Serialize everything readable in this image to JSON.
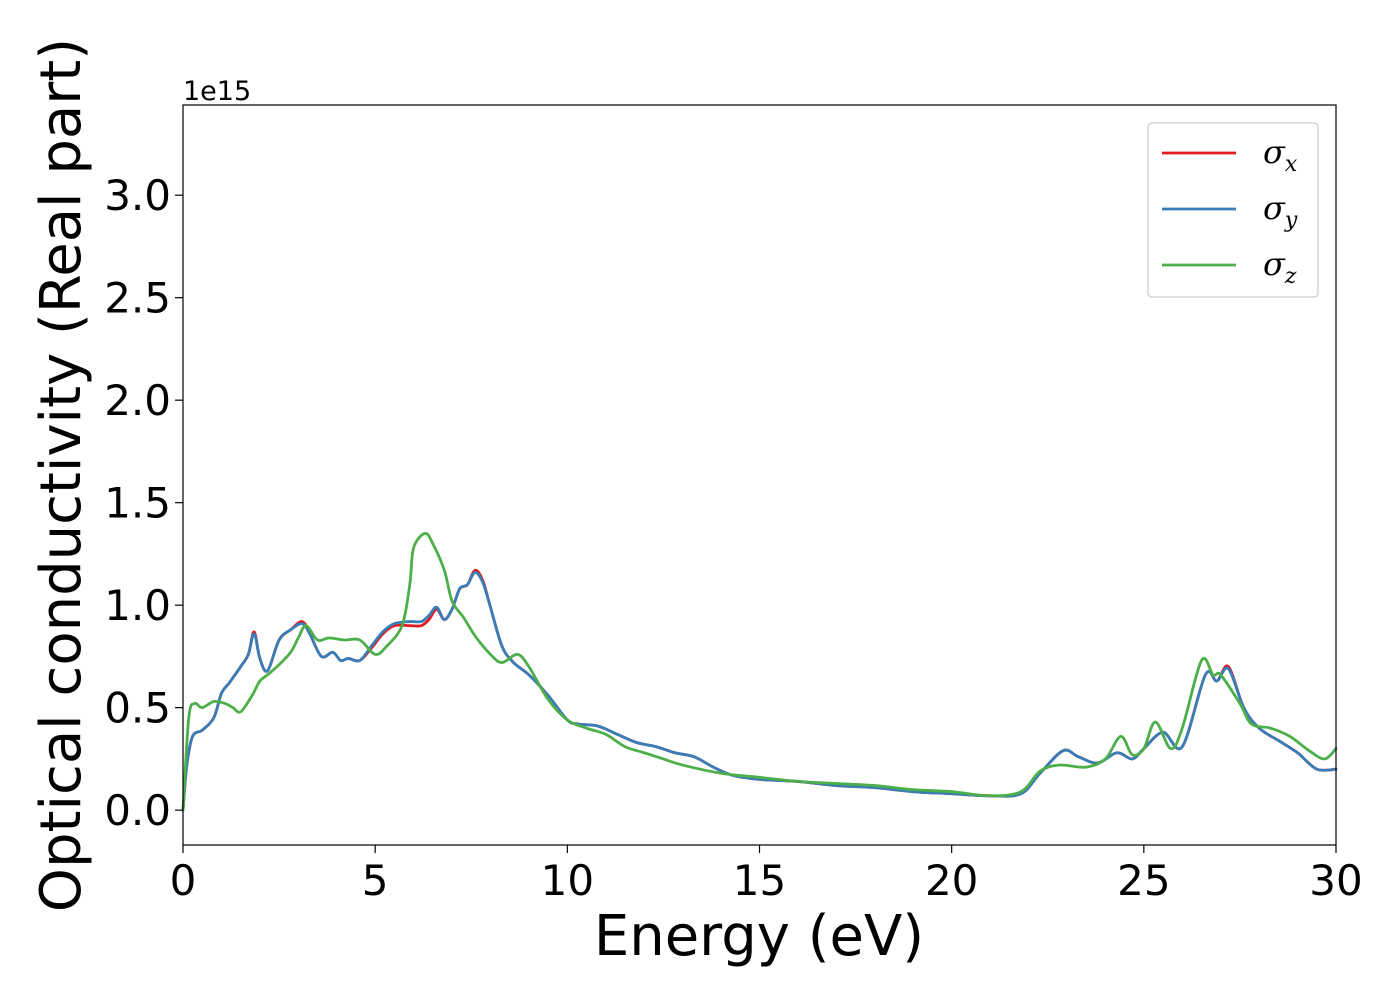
{
  "chart_data": {
    "type": "line",
    "xlabel": "Energy (eV)",
    "ylabel": "Optical conductivity (Real part)",
    "y_offset_text": "1e15",
    "xlim": [
      0,
      30
    ],
    "ylim": [
      -0.17,
      3.44
    ],
    "xticks": [
      0,
      5,
      10,
      15,
      20,
      25,
      30
    ],
    "xtick_labels": [
      "0",
      "5",
      "10",
      "15",
      "20",
      "25",
      "30"
    ],
    "yticks": [
      0.0,
      0.5,
      1.0,
      1.5,
      2.0,
      2.5,
      3.0
    ],
    "ytick_labels": [
      "0.0",
      "0.5",
      "1.0",
      "1.5",
      "2.0",
      "2.5",
      "3.0"
    ],
    "grid": false,
    "legend_position": "top-right",
    "series": [
      {
        "name": "σx",
        "label_base": "σ",
        "label_sub": "x",
        "color": "#e41a1c",
        "x": [
          0,
          0.1,
          0.25,
          0.5,
          0.8,
          1.0,
          1.2,
          1.5,
          1.7,
          1.85,
          2.0,
          2.2,
          2.5,
          2.8,
          3.1,
          3.3,
          3.6,
          3.9,
          4.1,
          4.3,
          4.6,
          4.9,
          5.2,
          5.5,
          5.9,
          6.2,
          6.4,
          6.6,
          6.8,
          7.0,
          7.2,
          7.4,
          7.6,
          7.8,
          8.0,
          8.3,
          8.6,
          9.0,
          9.5,
          10.0,
          10.3,
          10.8,
          11.3,
          11.8,
          12.3,
          12.8,
          13.3,
          13.8,
          14.3,
          15.0,
          16.0,
          17.0,
          18.0,
          19.0,
          20.0,
          21.0,
          21.8,
          22.3,
          22.9,
          23.3,
          23.8,
          24.3,
          24.7,
          25.0,
          25.5,
          26.0,
          26.6,
          26.9,
          27.2,
          27.6,
          28.0,
          28.5,
          29.0,
          29.5,
          30.0
        ],
        "values": [
          0.0,
          0.22,
          0.36,
          0.39,
          0.45,
          0.57,
          0.62,
          0.7,
          0.76,
          0.87,
          0.74,
          0.68,
          0.83,
          0.88,
          0.92,
          0.86,
          0.75,
          0.77,
          0.73,
          0.74,
          0.73,
          0.79,
          0.86,
          0.9,
          0.9,
          0.9,
          0.93,
          0.98,
          0.93,
          0.98,
          1.08,
          1.1,
          1.17,
          1.12,
          0.99,
          0.8,
          0.72,
          0.66,
          0.56,
          0.44,
          0.42,
          0.41,
          0.37,
          0.33,
          0.31,
          0.28,
          0.26,
          0.21,
          0.17,
          0.15,
          0.14,
          0.12,
          0.11,
          0.09,
          0.08,
          0.07,
          0.08,
          0.18,
          0.29,
          0.26,
          0.23,
          0.28,
          0.25,
          0.3,
          0.38,
          0.31,
          0.66,
          0.63,
          0.7,
          0.5,
          0.4,
          0.34,
          0.28,
          0.2,
          0.2
        ]
      },
      {
        "name": "σy",
        "label_base": "σ",
        "label_sub": "y",
        "color": "#377eb8",
        "x": [
          0,
          0.1,
          0.25,
          0.5,
          0.8,
          1.0,
          1.2,
          1.5,
          1.7,
          1.85,
          2.0,
          2.2,
          2.5,
          2.8,
          3.1,
          3.3,
          3.6,
          3.9,
          4.1,
          4.3,
          4.6,
          4.9,
          5.2,
          5.5,
          5.9,
          6.2,
          6.4,
          6.6,
          6.8,
          7.0,
          7.2,
          7.4,
          7.6,
          7.8,
          8.0,
          8.3,
          8.6,
          9.0,
          9.5,
          10.0,
          10.3,
          10.8,
          11.3,
          11.8,
          12.3,
          12.8,
          13.3,
          13.8,
          14.3,
          15.0,
          16.0,
          17.0,
          18.0,
          19.0,
          20.0,
          21.0,
          21.8,
          22.3,
          22.9,
          23.3,
          23.8,
          24.3,
          24.7,
          25.0,
          25.5,
          26.0,
          26.6,
          26.9,
          27.2,
          27.6,
          28.0,
          28.5,
          29.0,
          29.5,
          30.0
        ],
        "values": [
          0.0,
          0.22,
          0.36,
          0.39,
          0.45,
          0.57,
          0.62,
          0.7,
          0.76,
          0.86,
          0.74,
          0.68,
          0.83,
          0.88,
          0.91,
          0.86,
          0.75,
          0.77,
          0.73,
          0.74,
          0.73,
          0.8,
          0.87,
          0.91,
          0.92,
          0.92,
          0.95,
          0.99,
          0.93,
          0.98,
          1.08,
          1.1,
          1.16,
          1.11,
          0.99,
          0.8,
          0.72,
          0.66,
          0.56,
          0.44,
          0.42,
          0.41,
          0.37,
          0.33,
          0.31,
          0.28,
          0.26,
          0.21,
          0.17,
          0.15,
          0.14,
          0.12,
          0.11,
          0.09,
          0.08,
          0.07,
          0.08,
          0.18,
          0.29,
          0.26,
          0.23,
          0.28,
          0.25,
          0.3,
          0.38,
          0.31,
          0.66,
          0.63,
          0.69,
          0.5,
          0.4,
          0.34,
          0.28,
          0.2,
          0.2
        ]
      },
      {
        "name": "σz",
        "label_base": "σ",
        "label_sub": "z",
        "color": "#4daf4a",
        "x": [
          0,
          0.15,
          0.3,
          0.5,
          0.8,
          1.1,
          1.3,
          1.5,
          1.8,
          2.0,
          2.2,
          2.5,
          2.8,
          3.0,
          3.2,
          3.5,
          3.8,
          4.2,
          4.6,
          5.0,
          5.3,
          5.7,
          5.9,
          6.0,
          6.3,
          6.5,
          6.8,
          7.0,
          7.3,
          7.6,
          8.0,
          8.3,
          8.7,
          9.0,
          9.5,
          10.0,
          10.5,
          11.0,
          11.5,
          12.0,
          12.5,
          13.0,
          14.0,
          15.0,
          16.0,
          17.0,
          18.0,
          19.0,
          20.0,
          21.0,
          21.8,
          22.3,
          22.8,
          23.5,
          24.0,
          24.4,
          24.7,
          25.0,
          25.3,
          25.7,
          26.0,
          26.5,
          26.8,
          27.0,
          27.5,
          27.8,
          28.3,
          28.8,
          29.3,
          29.7,
          30.0
        ],
        "values": [
          0.0,
          0.45,
          0.52,
          0.5,
          0.53,
          0.52,
          0.5,
          0.48,
          0.56,
          0.63,
          0.66,
          0.71,
          0.77,
          0.84,
          0.9,
          0.83,
          0.84,
          0.83,
          0.83,
          0.76,
          0.8,
          0.9,
          1.1,
          1.28,
          1.35,
          1.3,
          1.17,
          1.02,
          0.94,
          0.85,
          0.76,
          0.72,
          0.76,
          0.7,
          0.54,
          0.44,
          0.4,
          0.37,
          0.31,
          0.28,
          0.25,
          0.22,
          0.18,
          0.16,
          0.14,
          0.13,
          0.12,
          0.1,
          0.09,
          0.07,
          0.09,
          0.19,
          0.22,
          0.21,
          0.25,
          0.36,
          0.27,
          0.3,
          0.43,
          0.3,
          0.4,
          0.73,
          0.66,
          0.66,
          0.52,
          0.42,
          0.4,
          0.36,
          0.29,
          0.25,
          0.3
        ]
      }
    ]
  }
}
